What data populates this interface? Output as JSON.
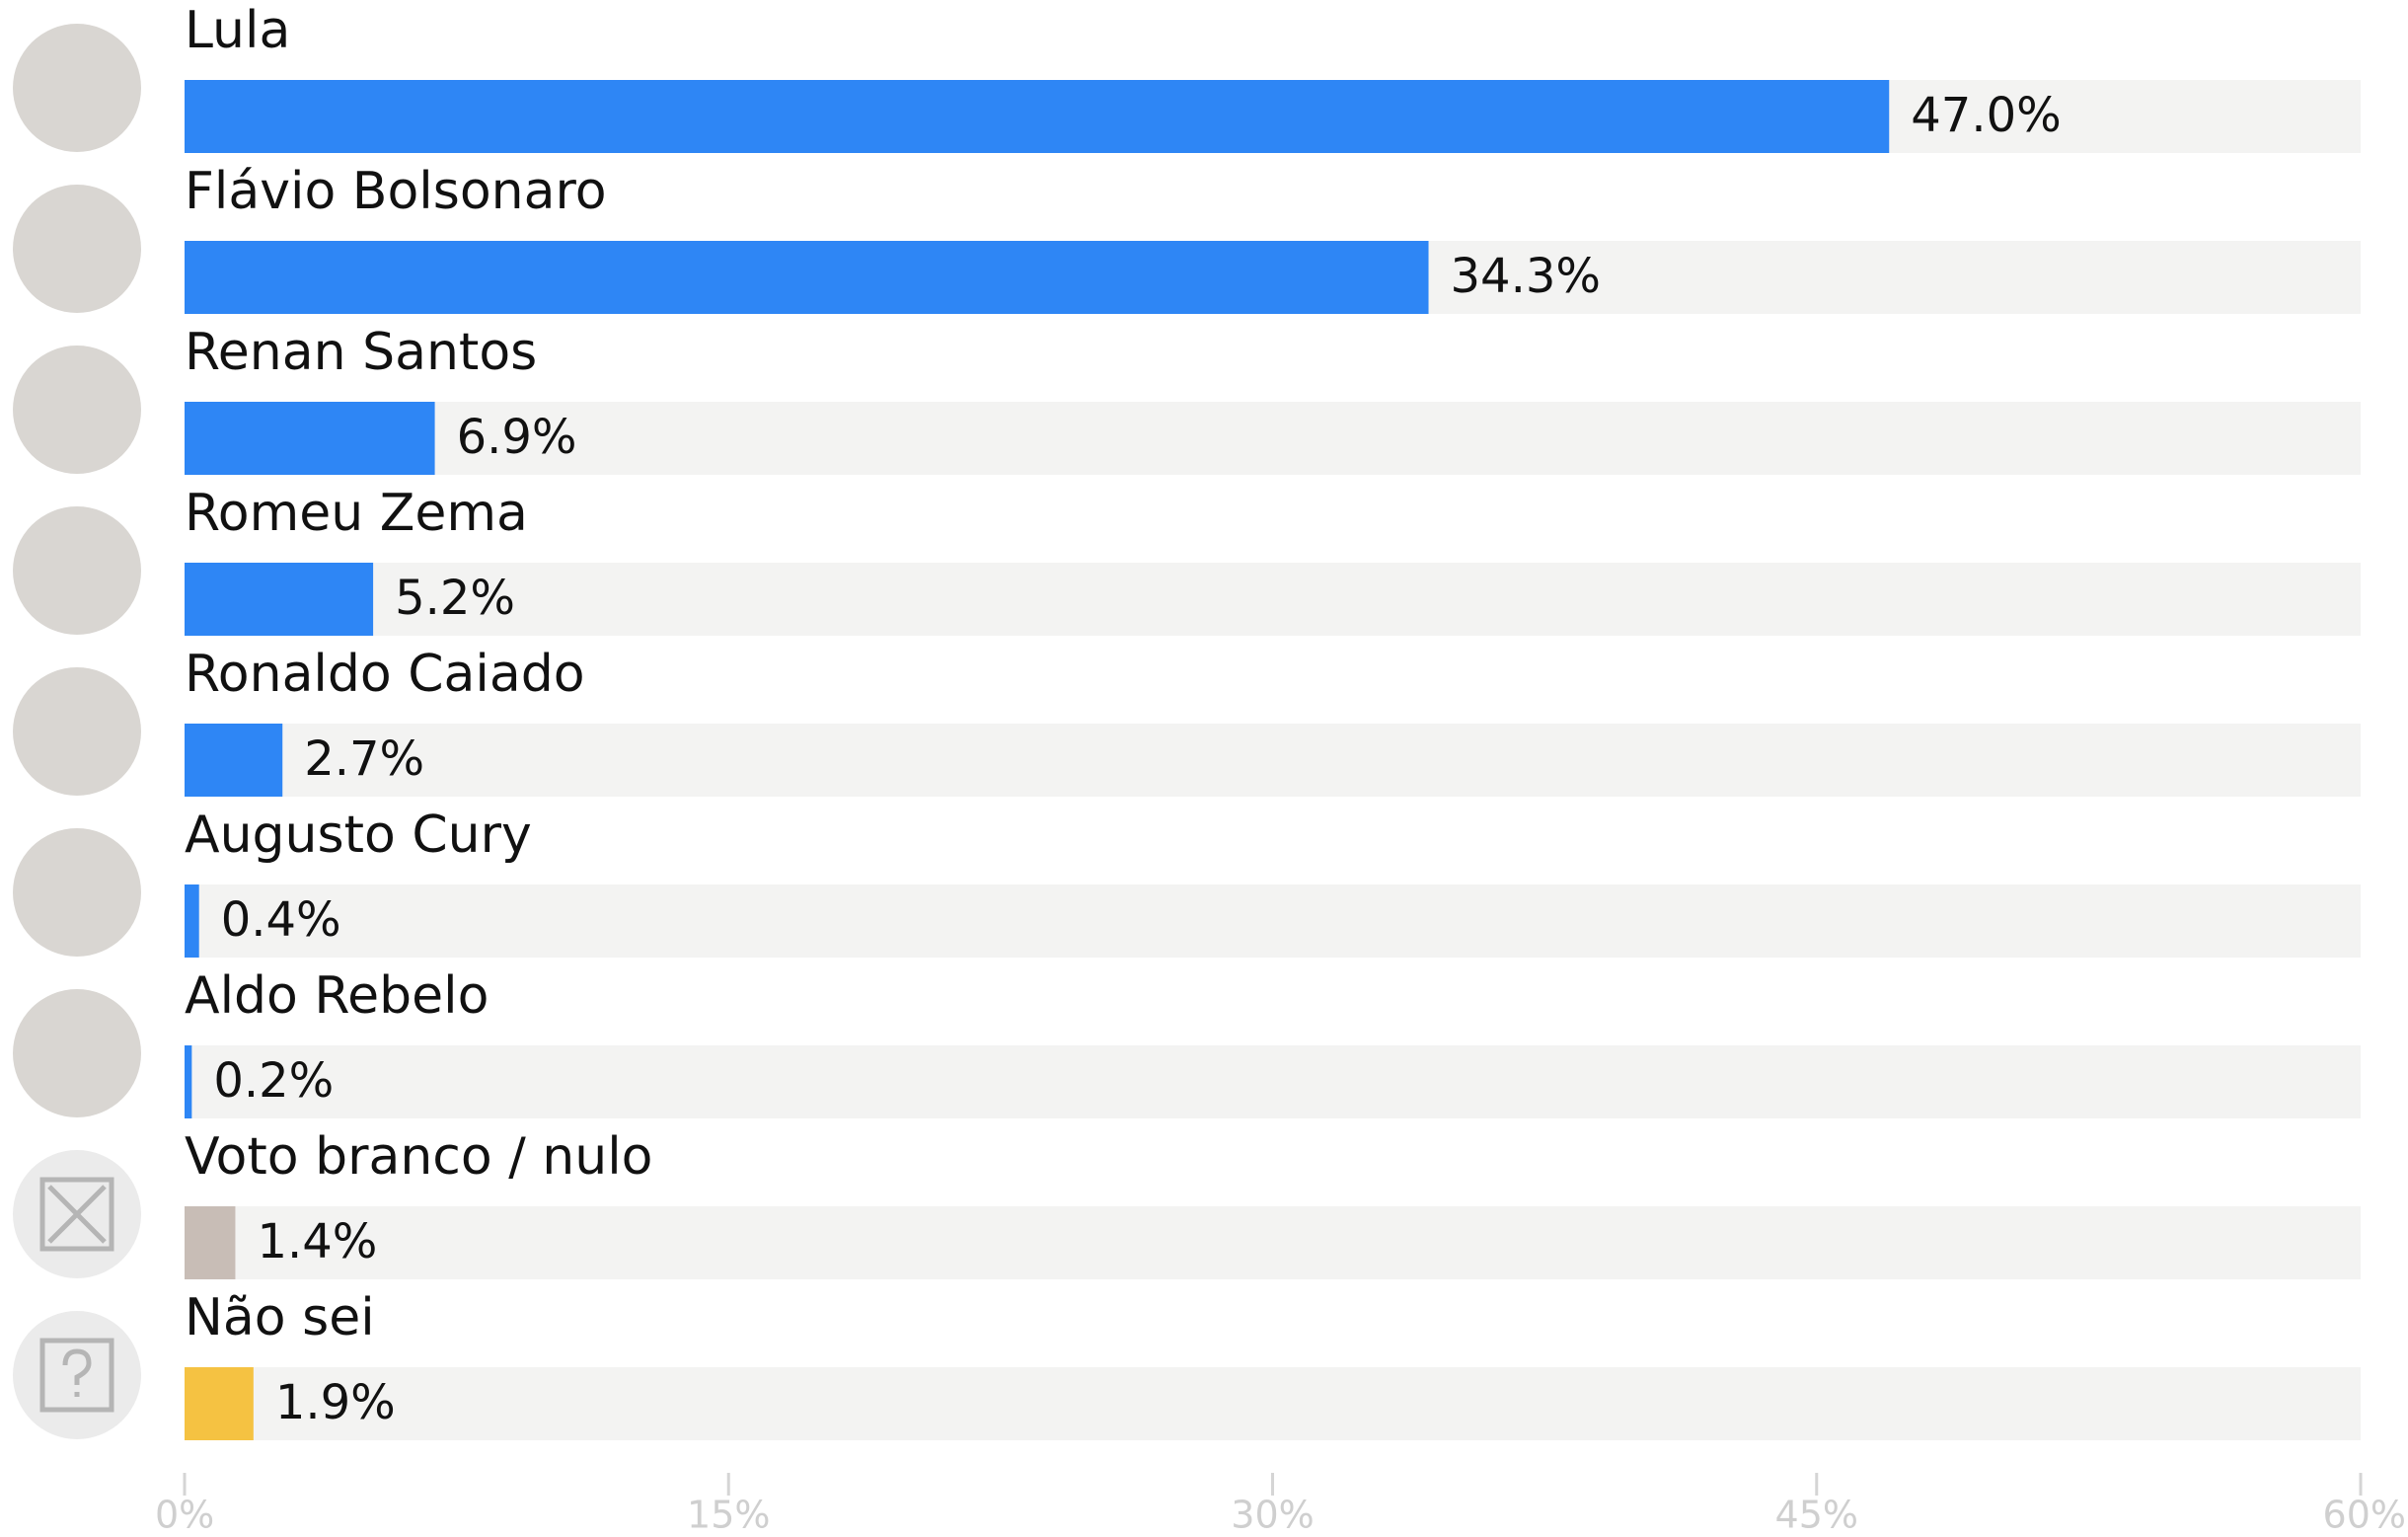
{
  "chart_data": {
    "type": "hbar",
    "categories": [
      "Lula",
      "Flávio Bolsonaro",
      "Renan Santos",
      "Romeu Zema",
      "Ronaldo Caiado",
      "Augusto Cury",
      "Aldo Rebelo",
      "Voto branco / nulo",
      "Não sei"
    ],
    "values": [
      47.0,
      34.3,
      6.9,
      5.2,
      2.7,
      0.4,
      0.2,
      1.4,
      1.9
    ],
    "value_labels": [
      "47.0%",
      "34.3%",
      "6.9%",
      "5.2%",
      "2.7%",
      "0.4%",
      "0.2%",
      "1.4%",
      "1.9%"
    ],
    "colors": [
      "#2e86f5",
      "#2e86f5",
      "#2e86f5",
      "#2e86f5",
      "#2e86f5",
      "#2e86f5",
      "#2e86f5",
      "#c8bdb6",
      "#f5c242"
    ],
    "xlim": [
      0,
      60
    ],
    "xticks": [
      {
        "value": 0,
        "label": "0%"
      },
      {
        "value": 15,
        "label": "15%"
      },
      {
        "value": 30,
        "label": "30%"
      },
      {
        "value": 45,
        "label": "45%"
      },
      {
        "value": 60,
        "label": "60%"
      }
    ]
  }
}
